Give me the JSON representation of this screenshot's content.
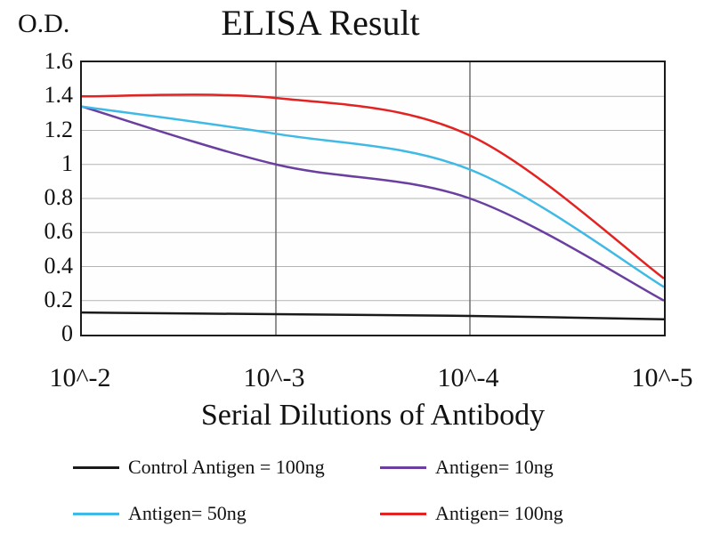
{
  "chart_data": {
    "type": "line",
    "title": "ELISA Result",
    "ylabel": "O.D.",
    "xlabel": "Serial Dilutions of Antibody",
    "x_ticklabels": [
      "10^-2",
      "10^-3",
      "10^-4",
      "10^-5"
    ],
    "y_ticklabels": [
      "0",
      "0.2",
      "0.4",
      "0.6",
      "0.8",
      "1",
      "1.2",
      "1.4",
      "1.6"
    ],
    "y_ticks": [
      0,
      0.2,
      0.4,
      0.6,
      0.8,
      1,
      1.2,
      1.4,
      1.6
    ],
    "ylim": [
      0,
      1.6
    ],
    "grid": true,
    "legend_position": "bottom",
    "series": [
      {
        "name": "Control Antigen = 100ng",
        "color": "#1a1a1a",
        "values": [
          0.13,
          0.12,
          0.11,
          0.09
        ]
      },
      {
        "name": "Antigen= 10ng",
        "color": "#6a3fa0",
        "values": [
          1.34,
          1.0,
          0.8,
          0.2
        ]
      },
      {
        "name": "Antigen= 50ng",
        "color": "#3fb9e5",
        "values": [
          1.34,
          1.18,
          0.97,
          0.28
        ]
      },
      {
        "name": "Antigen= 100ng",
        "color": "#e32222",
        "values": [
          1.4,
          1.39,
          1.17,
          0.33
        ]
      }
    ]
  }
}
